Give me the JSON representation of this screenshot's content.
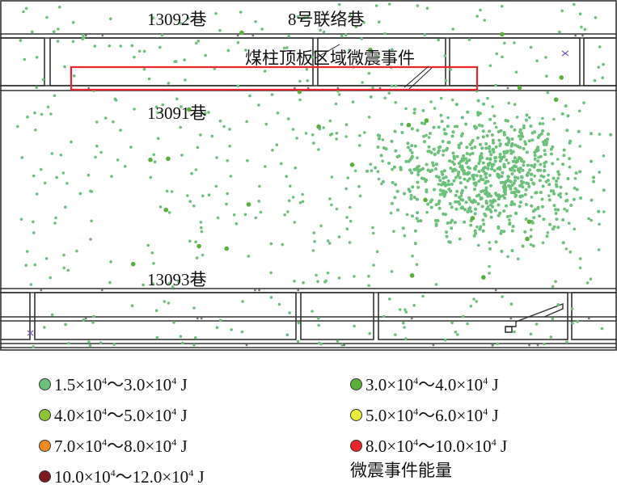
{
  "labels": {
    "roadway_13092": "13092巷",
    "connection_roadway_8": "8号联络巷",
    "pillar_roof_events": "煤柱顶板区域微震事件",
    "roadway_13091": "13091巷",
    "roadway_13093": "13093巷"
  },
  "legend": {
    "title": "微震事件能量",
    "items": [
      {
        "a": "1.5",
        "b": "3.0",
        "exp": "4",
        "unit": "J",
        "color": "#6cc17a"
      },
      {
        "a": "3.0",
        "b": "4.0",
        "exp": "4",
        "unit": "J",
        "color": "#5aae3a"
      },
      {
        "a": "4.0",
        "b": "5.0",
        "exp": "4",
        "unit": "J",
        "color": "#8cc43a"
      },
      {
        "a": "5.0",
        "b": "6.0",
        "exp": "4",
        "unit": "J",
        "color": "#eaea3a"
      },
      {
        "a": "7.0",
        "b": "8.0",
        "exp": "4",
        "unit": "J",
        "color": "#f28a22"
      },
      {
        "a": "8.0",
        "b": "10.0",
        "exp": "4",
        "unit": "J",
        "color": "#e8252a"
      },
      {
        "a": "10.0",
        "b": "12.0",
        "exp": "4",
        "unit": "J",
        "color": "#7a1a1e"
      }
    ],
    "times": "×",
    "tilde": "～"
  },
  "colors": {
    "event": "#6cc17a",
    "highlight_box": "#e8252a",
    "lines": "#333333",
    "sensor_cross": "#7a5ab8"
  }
}
